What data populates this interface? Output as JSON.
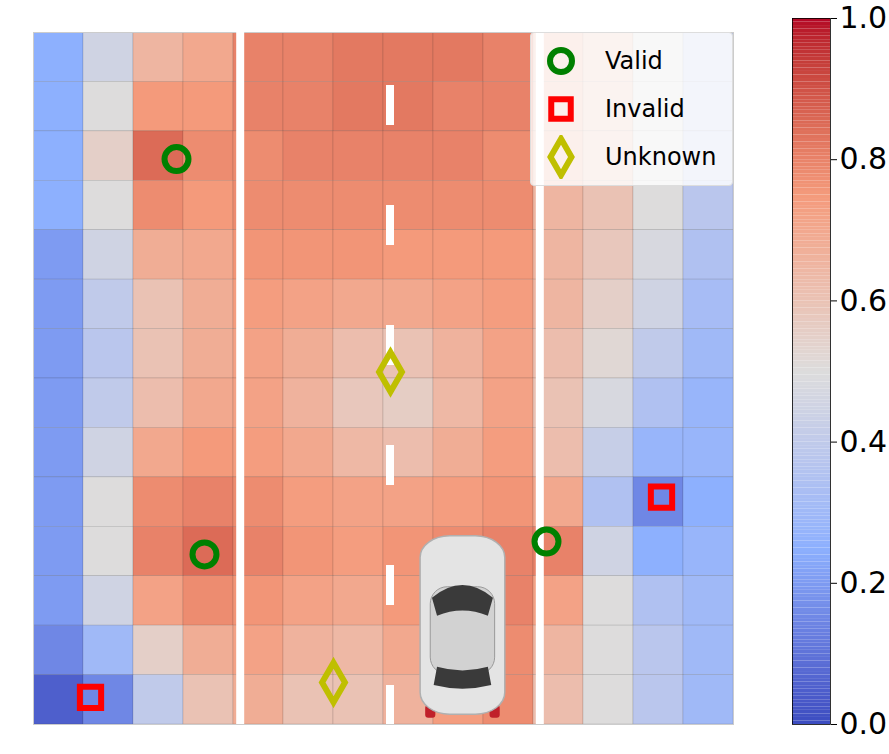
{
  "chart_data": {
    "type": "heatmap",
    "tick_labels": false,
    "xlim": [
      0,
      14
    ],
    "ylim": [
      0,
      14
    ],
    "x": [
      0.5,
      1.5,
      2.5,
      3.5,
      4.5,
      5.5,
      6.5,
      7.5,
      8.5,
      9.5,
      10.5,
      11.5,
      12.5,
      13.5
    ],
    "y": [
      13.5,
      12.5,
      11.5,
      10.5,
      9.5,
      8.5,
      7.5,
      6.5,
      5.5,
      4.5,
      3.5,
      2.5,
      1.5,
      0.5
    ],
    "values": [
      [
        0.25,
        0.45,
        0.65,
        0.7,
        0.8,
        0.8,
        0.82,
        0.82,
        0.82,
        0.8,
        0.65,
        0.6,
        0.5,
        0.4
      ],
      [
        0.25,
        0.5,
        0.75,
        0.75,
        0.8,
        0.8,
        0.82,
        0.82,
        0.8,
        0.8,
        0.65,
        0.6,
        0.5,
        0.4
      ],
      [
        0.25,
        0.55,
        0.85,
        0.78,
        0.78,
        0.8,
        0.8,
        0.8,
        0.8,
        0.78,
        0.65,
        0.6,
        0.5,
        0.4
      ],
      [
        0.25,
        0.5,
        0.78,
        0.75,
        0.78,
        0.78,
        0.78,
        0.78,
        0.78,
        0.78,
        0.65,
        0.6,
        0.5,
        0.38
      ],
      [
        0.2,
        0.45,
        0.68,
        0.7,
        0.76,
        0.76,
        0.76,
        0.75,
        0.75,
        0.75,
        0.65,
        0.58,
        0.48,
        0.35
      ],
      [
        0.2,
        0.4,
        0.6,
        0.68,
        0.74,
        0.72,
        0.7,
        0.7,
        0.72,
        0.74,
        0.65,
        0.55,
        0.45,
        0.32
      ],
      [
        0.2,
        0.38,
        0.6,
        0.68,
        0.72,
        0.68,
        0.62,
        0.6,
        0.66,
        0.72,
        0.62,
        0.52,
        0.4,
        0.3
      ],
      [
        0.2,
        0.4,
        0.62,
        0.7,
        0.72,
        0.66,
        0.58,
        0.56,
        0.64,
        0.72,
        0.6,
        0.48,
        0.35,
        0.28
      ],
      [
        0.2,
        0.45,
        0.7,
        0.75,
        0.74,
        0.7,
        0.64,
        0.62,
        0.68,
        0.74,
        0.62,
        0.42,
        0.28,
        0.28
      ],
      [
        0.2,
        0.5,
        0.78,
        0.8,
        0.78,
        0.74,
        0.72,
        0.72,
        0.74,
        0.76,
        0.7,
        0.35,
        0.15,
        0.25
      ],
      [
        0.2,
        0.5,
        0.8,
        0.85,
        0.8,
        0.76,
        0.74,
        0.76,
        0.78,
        0.8,
        0.8,
        0.45,
        0.25,
        0.28
      ],
      [
        0.2,
        0.45,
        0.72,
        0.78,
        0.76,
        0.72,
        0.7,
        0.75,
        0.78,
        0.8,
        0.72,
        0.5,
        0.35,
        0.3
      ],
      [
        0.15,
        0.3,
        0.55,
        0.68,
        0.72,
        0.66,
        0.64,
        0.7,
        0.76,
        0.78,
        0.65,
        0.5,
        0.38,
        0.3
      ],
      [
        0.05,
        0.15,
        0.4,
        0.6,
        0.68,
        0.6,
        0.6,
        0.66,
        0.74,
        0.78,
        0.62,
        0.5,
        0.38,
        0.3
      ]
    ],
    "colorbar": {
      "range": [
        0,
        1
      ],
      "ticks": [
        {
          "value": 0,
          "label": "0.0"
        },
        0.2,
        0.4,
        0.6,
        0.8,
        {
          "value": 1,
          "label": "1.0"
        }
      ]
    },
    "series": [
      {
        "name": "Valid",
        "color": "#008000",
        "marker": "circle",
        "x": [
          2.86,
          3.42,
          10.26
        ],
        "y": [
          11.44,
          3.44,
          3.7
        ]
      },
      {
        "name": "Invalid",
        "color": "#ff0000",
        "marker": "square",
        "x": [
          1.14,
          12.56
        ],
        "y": [
          0.55,
          4.6
        ]
      },
      {
        "name": "Unknown",
        "color": "#bfbf00",
        "marker": "diamond",
        "x": [
          7.14,
          6.0
        ],
        "y": [
          7.13,
          0.85
        ]
      }
    ],
    "legend": "upper right"
  }
}
